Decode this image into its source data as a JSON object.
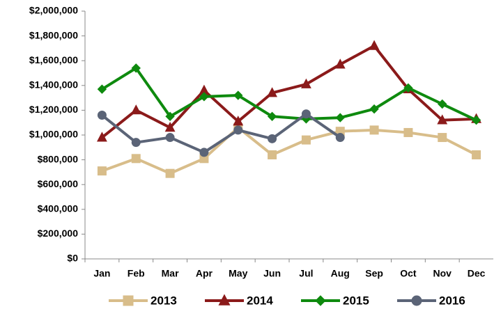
{
  "chart_data": {
    "type": "line",
    "categories": [
      "Jan",
      "Feb",
      "Mar",
      "Apr",
      "May",
      "Jun",
      "Jul",
      "Aug",
      "Sep",
      "Oct",
      "Nov",
      "Dec"
    ],
    "series": [
      {
        "name": "2013",
        "color": "#d8bd8a",
        "marker": "square",
        "values": [
          710000,
          810000,
          690000,
          810000,
          1060000,
          840000,
          960000,
          1030000,
          1040000,
          1020000,
          980000,
          840000
        ]
      },
      {
        "name": "2014",
        "color": "#8b1a1a",
        "marker": "triangle",
        "values": [
          980000,
          1200000,
          1060000,
          1360000,
          1110000,
          1340000,
          1410000,
          1570000,
          1720000,
          1370000,
          1120000,
          1130000
        ]
      },
      {
        "name": "2015",
        "color": "#0e8a0e",
        "marker": "diamond",
        "values": [
          1370000,
          1540000,
          1150000,
          1310000,
          1320000,
          1150000,
          1130000,
          1140000,
          1210000,
          1380000,
          1250000,
          1120000
        ]
      },
      {
        "name": "2016",
        "color": "#5b6477",
        "marker": "circle",
        "values": [
          1160000,
          940000,
          980000,
          860000,
          1040000,
          970000,
          1170000,
          980000,
          null,
          null,
          null,
          null
        ]
      }
    ],
    "ylim": [
      0,
      2000000
    ],
    "yticks": [
      {
        "value": 0,
        "label": "$0"
      },
      {
        "value": 200000,
        "label": "$200,000"
      },
      {
        "value": 400000,
        "label": "$400,000"
      },
      {
        "value": 600000,
        "label": "$600,000"
      },
      {
        "value": 800000,
        "label": "$800,000"
      },
      {
        "value": 1000000,
        "label": "$1,000,000"
      },
      {
        "value": 1200000,
        "label": "$1,200,000"
      },
      {
        "value": 1400000,
        "label": "$1,400,000"
      },
      {
        "value": 1600000,
        "label": "$1,600,000"
      },
      {
        "value": 1800000,
        "label": "$1,800,000"
      },
      {
        "value": 2000000,
        "label": "$2,000,000"
      }
    ],
    "grid": false,
    "legend": "bottom"
  }
}
